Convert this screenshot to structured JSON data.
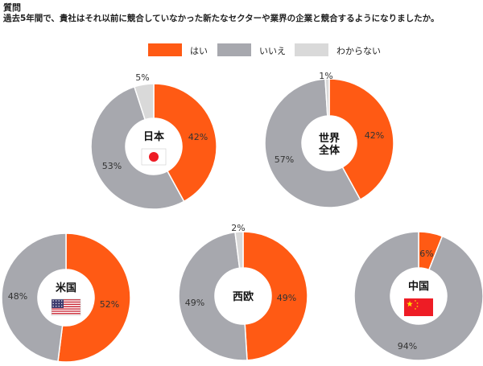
{
  "question": {
    "label": "質問",
    "text": "過去5年間で、貴社はそれ以前に競合していなかった新たなセクターや業界の企業と競合するようになりましたか。"
  },
  "colors": {
    "yes": "#ff5a14",
    "no": "#a7a8ae",
    "unknown": "#d9d9d9",
    "flag_red": "#ee1c25"
  },
  "legend": [
    {
      "key": "yes",
      "label": "はい"
    },
    {
      "key": "no",
      "label": "いいえ"
    },
    {
      "key": "unknown",
      "label": "わからない"
    }
  ],
  "chart_data": [
    {
      "type": "pie",
      "name": "日本",
      "flag": "japan-flag",
      "slices": [
        {
          "key": "yes",
          "value": 42,
          "label": "42%"
        },
        {
          "key": "no",
          "value": 53,
          "label": "53%"
        },
        {
          "key": "unknown",
          "value": 5,
          "label": "5%"
        }
      ]
    },
    {
      "type": "pie",
      "name": "世界\n全体",
      "flag": null,
      "slices": [
        {
          "key": "yes",
          "value": 42,
          "label": "42%"
        },
        {
          "key": "no",
          "value": 57,
          "label": "57%"
        },
        {
          "key": "unknown",
          "value": 1,
          "label": "1%"
        }
      ]
    },
    {
      "type": "pie",
      "name": "米国",
      "flag": "usa-flag",
      "slices": [
        {
          "key": "yes",
          "value": 52,
          "label": "52%"
        },
        {
          "key": "no",
          "value": 48,
          "label": "48%"
        }
      ]
    },
    {
      "type": "pie",
      "name": "西欧",
      "flag": null,
      "slices": [
        {
          "key": "yes",
          "value": 49,
          "label": "49%"
        },
        {
          "key": "no",
          "value": 49,
          "label": "49%"
        },
        {
          "key": "unknown",
          "value": 2,
          "label": "2%"
        }
      ]
    },
    {
      "type": "pie",
      "name": "中国",
      "flag": "china-flag",
      "slices": [
        {
          "key": "yes",
          "value": 6,
          "label": "6%"
        },
        {
          "key": "no",
          "value": 94,
          "label": "94%"
        }
      ]
    }
  ]
}
